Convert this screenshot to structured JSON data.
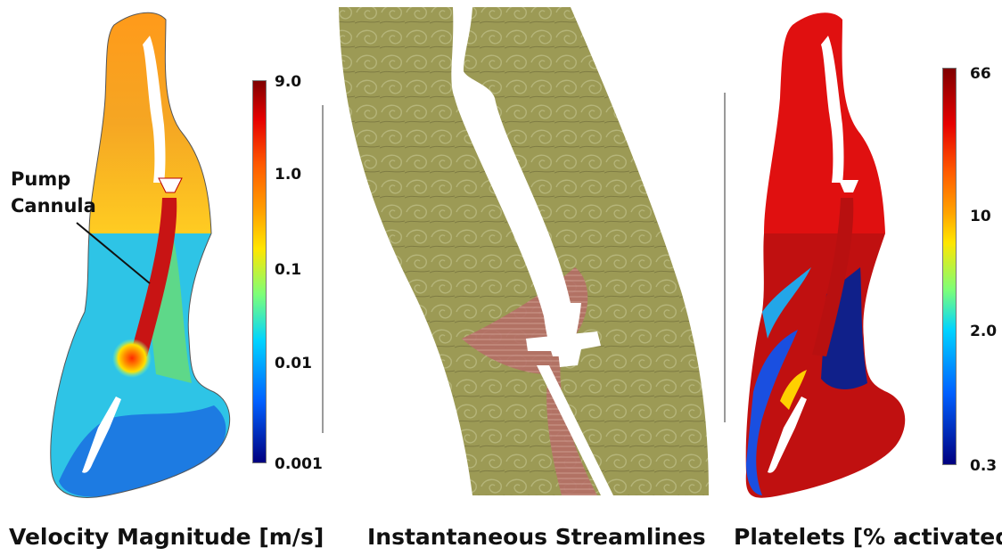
{
  "panels": [
    {
      "id": "velocity",
      "caption": "Velocity Magnitude [m/s]",
      "callout": {
        "line1": "Pump",
        "line2": "Cannula"
      },
      "colorbar": {
        "scale": "log",
        "colormap": "jet",
        "ticks": [
          "9.0",
          "1.0",
          "0.1",
          "0.01",
          "0.001"
        ]
      }
    },
    {
      "id": "streamlines",
      "caption": "Instantaneous Streamlines"
    },
    {
      "id": "platelets",
      "caption": "Platelets [% activated]",
      "colorbar": {
        "scale": "log",
        "colormap": "jet",
        "ticks": [
          "66",
          "10",
          "2.0",
          "0.3"
        ]
      }
    }
  ],
  "colors": {
    "jet_dark_blue": "#00007f",
    "jet_blue": "#0044ff",
    "jet_cyan": "#00d4ff",
    "jet_green": "#7cff79",
    "jet_yellow": "#ffe600",
    "jet_orange": "#ff8000",
    "jet_red": "#e60000",
    "jet_dark_red": "#7f0000",
    "streamline_olive": "#9a9a54",
    "streamline_pink": "#b86a6a"
  }
}
